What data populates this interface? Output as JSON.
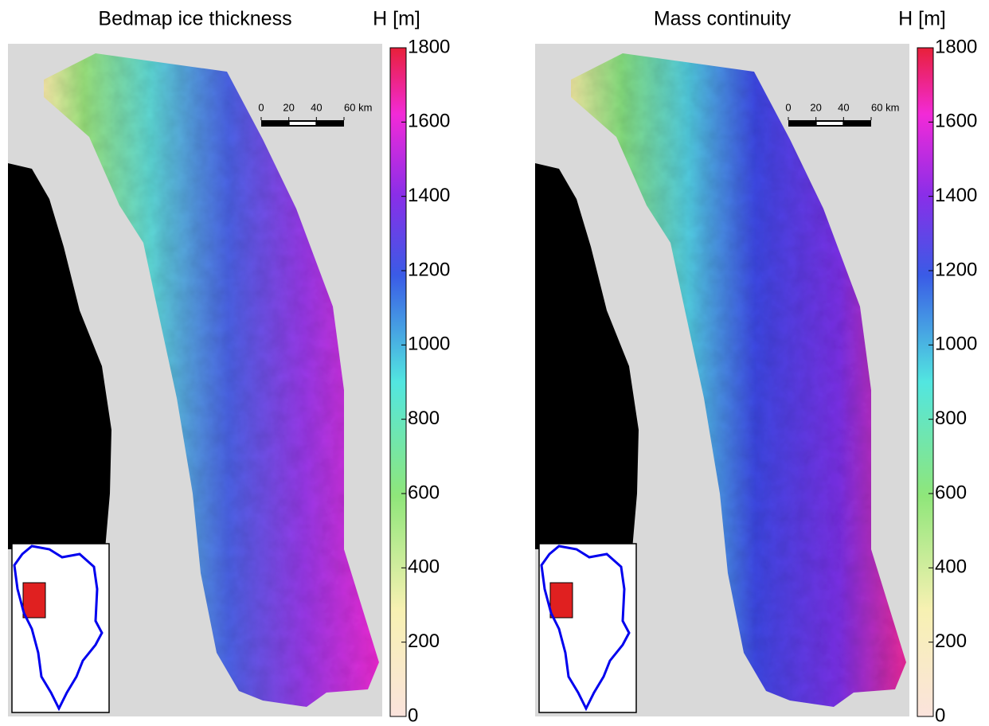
{
  "panels": [
    {
      "title": "Bedmap ice thickness",
      "colorbar": {
        "label": "H [m]",
        "range": [
          0,
          1800
        ],
        "ticks": [
          0,
          200,
          400,
          600,
          800,
          1000,
          1200,
          1400,
          1600,
          1800
        ]
      },
      "scalebar": {
        "range": [
          0,
          60
        ],
        "ticks": [
          0,
          20,
          40,
          {
            "value": 60,
            "label": "60 km"
          }
        ]
      }
    },
    {
      "title": "Mass continuity",
      "colorbar": {
        "label": "H [m]",
        "range": [
          0,
          1800
        ],
        "ticks": [
          0,
          200,
          400,
          600,
          800,
          1000,
          1200,
          1400,
          1600,
          1800
        ]
      },
      "scalebar": {
        "range": [
          0,
          60
        ],
        "ticks": [
          0,
          20,
          40,
          {
            "value": 60,
            "label": "60 km"
          }
        ]
      }
    }
  ]
}
